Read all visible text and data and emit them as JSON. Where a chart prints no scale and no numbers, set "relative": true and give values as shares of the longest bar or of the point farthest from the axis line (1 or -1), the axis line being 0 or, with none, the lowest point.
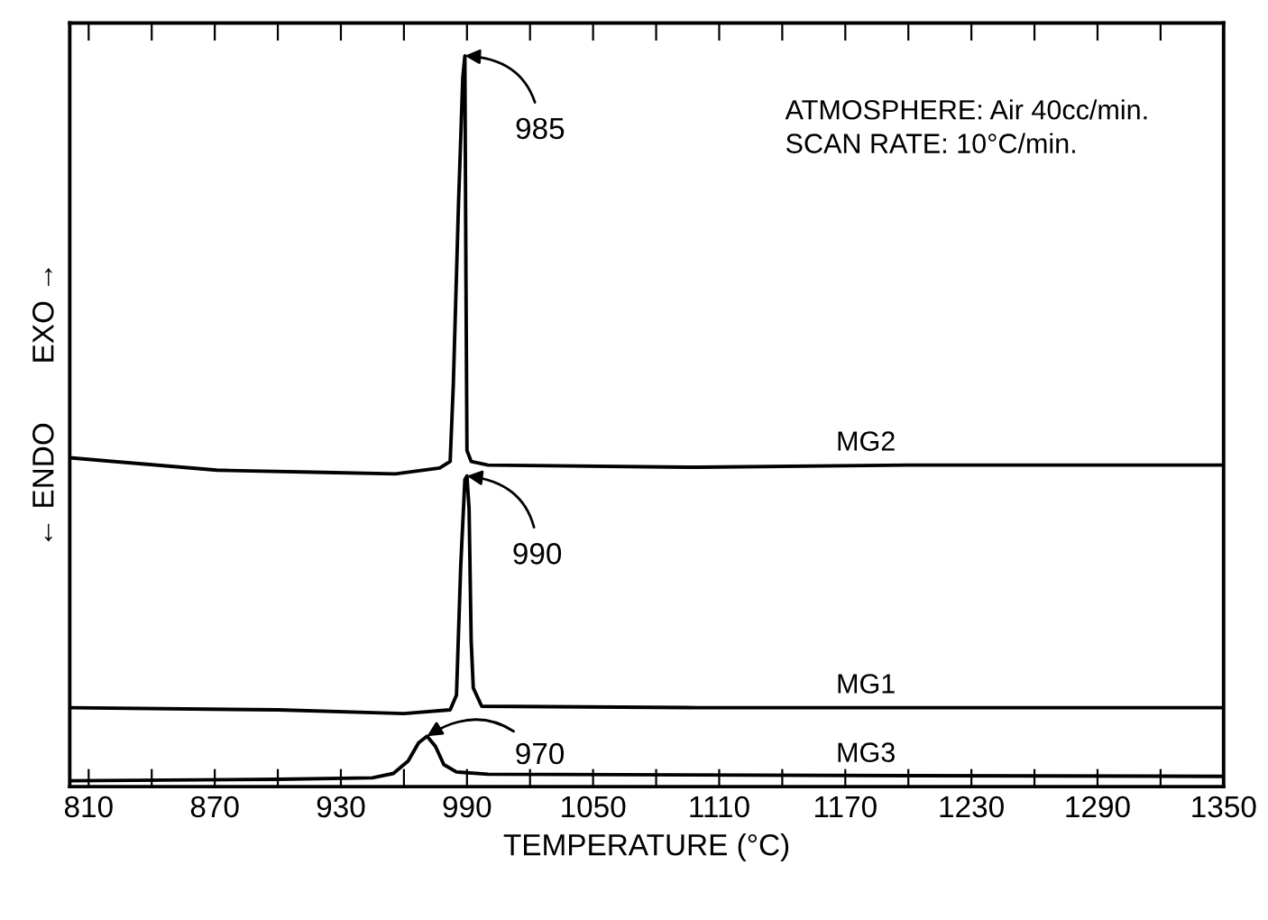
{
  "chart_data": {
    "type": "line",
    "relative": true,
    "xlabel": "TEMPERATURE (°C)",
    "ylabel": "← ENDO       EXO →",
    "xlim": [
      801,
      1350
    ],
    "xticks": [
      810,
      {
        "value": 840,
        "label": null
      },
      870,
      {
        "value": 900,
        "label": null
      },
      930,
      {
        "value": 960,
        "label": null
      },
      990,
      {
        "value": 1020,
        "label": null
      },
      1050,
      {
        "value": 1080,
        "label": null
      },
      1110,
      {
        "value": 1140,
        "label": null
      },
      1170,
      {
        "value": 1200,
        "label": null
      },
      1230,
      {
        "value": 1260,
        "label": null
      },
      1290,
      {
        "value": 1320,
        "label": null
      },
      1350
    ],
    "tick_labels": "x",
    "grid": false,
    "legend": false,
    "marker": "none",
    "line_style": "solid",
    "series": [
      {
        "name": "MG2",
        "color": "#000000",
        "x": [
          801,
          871,
          922,
          956,
          977,
          982,
          983.5,
          986,
          988,
          989,
          989.5,
          990,
          992,
          1000,
          1100,
          1200,
          1350
        ],
        "values": [
          0.45,
          0.433,
          0.43,
          0.428,
          0.436,
          0.445,
          0.55,
          0.8,
          0.97,
          1.0,
          0.7,
          0.46,
          0.445,
          0.44,
          0.437,
          0.44,
          0.44
        ]
      },
      {
        "name": "MG1",
        "color": "#000000",
        "x": [
          801,
          900,
          960,
          982,
          985,
          987,
          989,
          990,
          991,
          992,
          993,
          997,
          1100,
          1350
        ],
        "values": [
          0.108,
          0.105,
          0.1,
          0.105,
          0.125,
          0.3,
          0.42,
          0.425,
          0.38,
          0.2,
          0.135,
          0.11,
          0.108,
          0.108
        ]
      },
      {
        "name": "MG3",
        "color": "#000000",
        "x": [
          801,
          900,
          945,
          955,
          962,
          967,
          971,
          975,
          979,
          985,
          1000,
          1200,
          1350
        ],
        "values": [
          0.008,
          0.01,
          0.012,
          0.018,
          0.035,
          0.06,
          0.069,
          0.055,
          0.03,
          0.02,
          0.017,
          0.015,
          0.014
        ]
      }
    ],
    "annotations": [
      {
        "text": "985",
        "x": 989,
        "y": 1.0
      },
      {
        "text": "990",
        "x": 990,
        "y": 0.425
      },
      {
        "text": "970",
        "x": 971,
        "y": 0.069
      },
      "ATMOSPHERE: Air 40cc/min.\nSCAN RATE: 10°C/min."
    ]
  }
}
